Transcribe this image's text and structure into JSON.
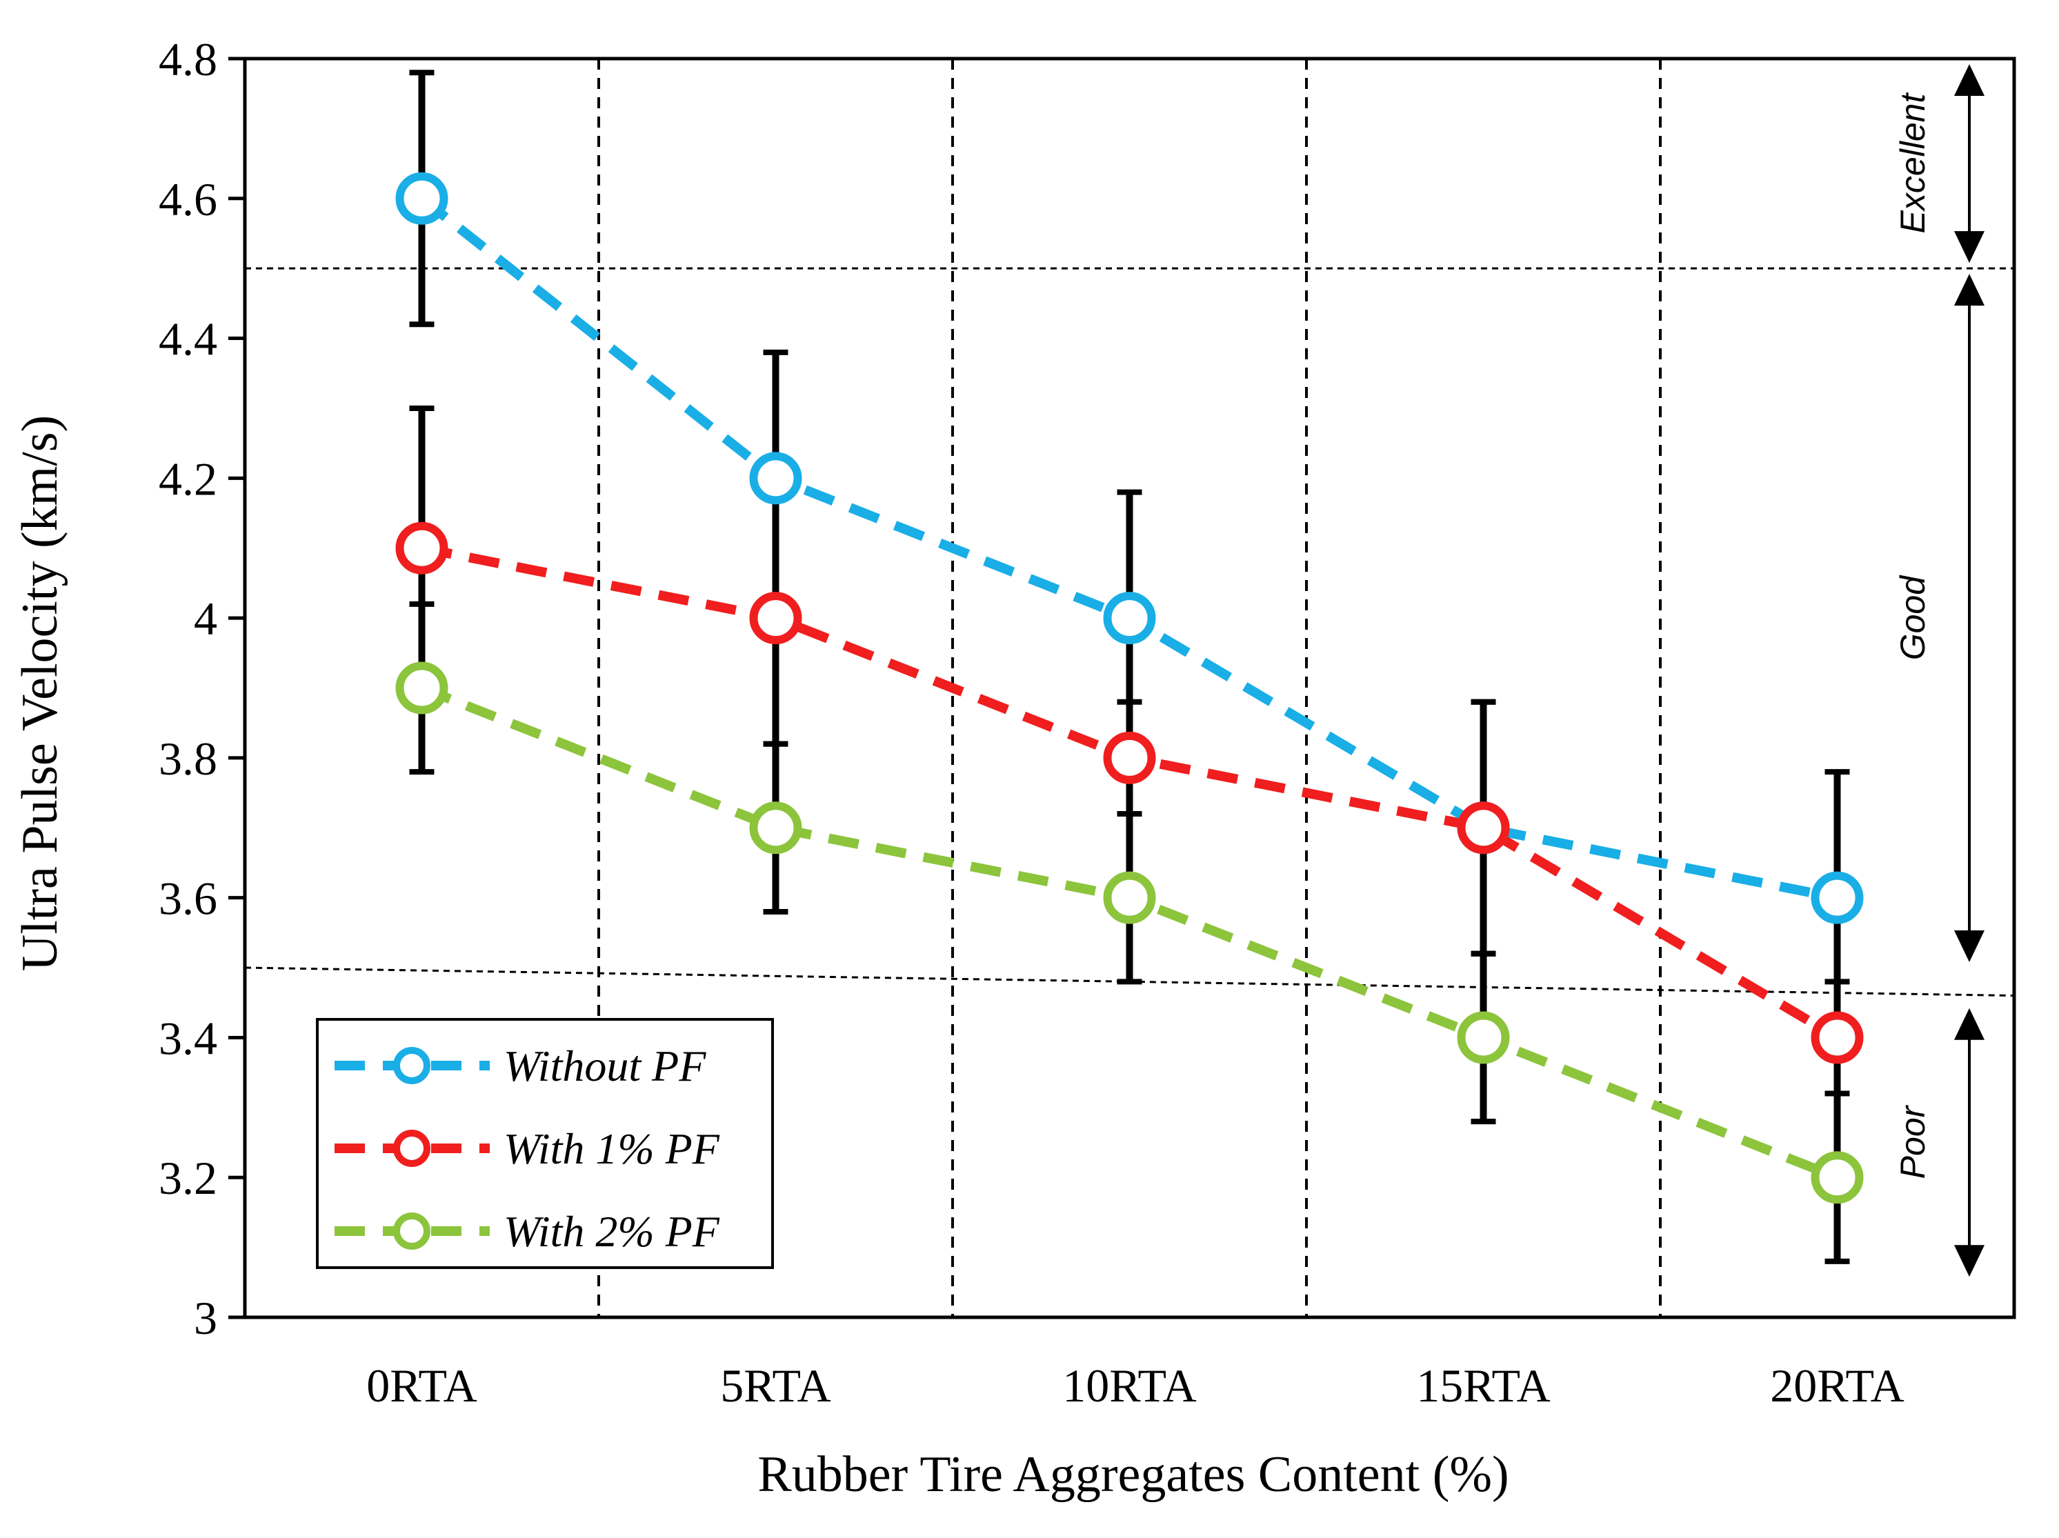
{
  "chart_data": {
    "type": "line",
    "categories": [
      "0RTA",
      "5RTA",
      "10RTA",
      "15RTA",
      "20RTA"
    ],
    "xlabel": "Rubber Tire Aggregates Content (%)",
    "ylabel": "Ultra Pulse Velocity (km/s)",
    "ylim": [
      3,
      4.8
    ],
    "yticks": [
      3,
      3.2,
      3.4,
      3.6,
      3.8,
      4,
      4.2,
      4.4,
      4.6,
      4.8
    ],
    "ytick_labels": [
      "3",
      "3.2",
      "3.4",
      "3.6",
      "3.8",
      "4",
      "4.2",
      "4.4",
      "4.6",
      "4.8"
    ],
    "grid": "vertical dashed separators between categories",
    "legend_position": "bottom-left",
    "series": [
      {
        "name": "Without PF",
        "color": "#1AAEE6",
        "values": [
          4.6,
          4.2,
          4.0,
          3.7,
          3.6
        ],
        "error": [
          0.18,
          0.18,
          0.18,
          0.18,
          0.18
        ]
      },
      {
        "name": "With 1% PF",
        "color": "#F01E1E",
        "values": [
          4.1,
          4.0,
          3.8,
          3.7,
          3.4
        ],
        "error": [
          0.2,
          0.18,
          0.08,
          0.18,
          0.08
        ]
      },
      {
        "name": "With 2% PF",
        "color": "#8CC43C",
        "values": [
          3.9,
          3.7,
          3.6,
          3.4,
          3.2
        ],
        "error": [
          0.12,
          0.12,
          0.12,
          0.12,
          0.12
        ]
      }
    ],
    "quality_thresholds": [
      {
        "from": [
          3,
          4.5
        ],
        "to": [
          4.8,
          4.5
        ]
      },
      {
        "from": [
          3,
          3.5
        ],
        "to": [
          4.8,
          3.46
        ]
      }
    ],
    "quality_zones": [
      {
        "label": "Excellent",
        "from": 4.5,
        "to": 4.8
      },
      {
        "label": "Good",
        "from": 3.5,
        "to": 4.5
      },
      {
        "label": "Poor",
        "from": 3.05,
        "to": 3.45
      }
    ],
    "zone_arrow_color": "#000000"
  }
}
